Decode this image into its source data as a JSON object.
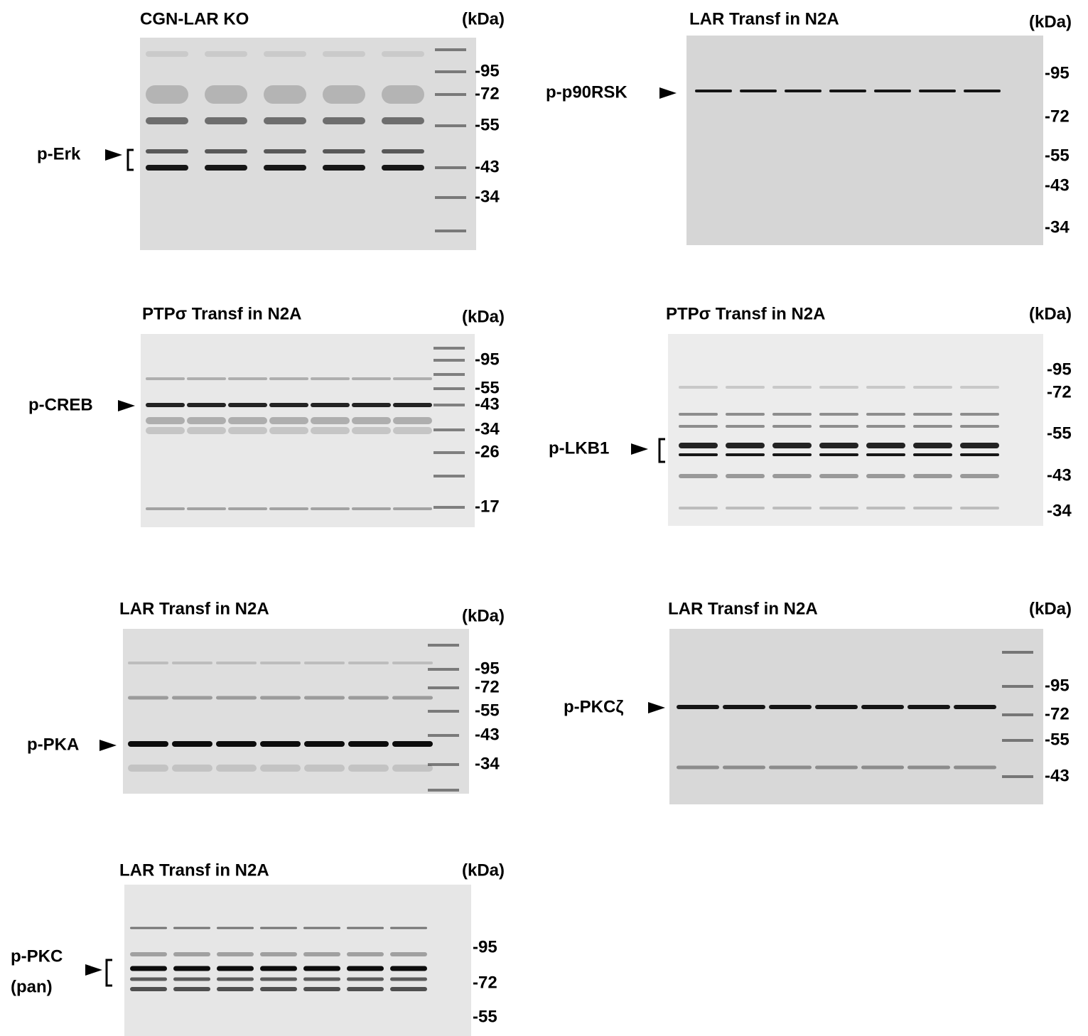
{
  "panels": [
    {
      "title": "CGN-LAR KO",
      "unit": "(kDa)",
      "markers": [
        "-95",
        "-72",
        "-55",
        "-43",
        "-34"
      ],
      "target": [
        "p-Erk"
      ]
    },
    {
      "title": "LAR Transf in N2A",
      "unit": "(kDa)",
      "markers": [
        "-95",
        "-72",
        "-55",
        "-43",
        "-34"
      ],
      "target": [
        "p-p90RSK"
      ]
    },
    {
      "title": "PTPσ Transf in N2A",
      "unit": "(kDa)",
      "markers": [
        "-95",
        "-55",
        "-43",
        "-34",
        "-26",
        "-17"
      ],
      "target": [
        "p-CREB"
      ]
    },
    {
      "title": "PTPσ Transf in N2A",
      "unit": "(kDa)",
      "markers": [
        "-95",
        "-72",
        "-55",
        "-43",
        "-34"
      ],
      "target": [
        "p-LKB1"
      ]
    },
    {
      "title": "LAR Transf in N2A",
      "unit": "(kDa)",
      "markers": [
        "-95",
        "-72",
        "-55",
        "-43",
        "-34"
      ],
      "target": [
        "p-PKA"
      ]
    },
    {
      "title": "LAR Transf in N2A",
      "unit": "(kDa)",
      "markers": [
        "-95",
        "-72",
        "-55",
        "-43"
      ],
      "target": [
        "p-PKCζ"
      ]
    },
    {
      "title": "LAR Transf in N2A",
      "unit": "(kDa)",
      "markers": [
        "-95",
        "-72",
        "-55"
      ],
      "target": [
        "p-PKC",
        "(pan)"
      ]
    }
  ]
}
